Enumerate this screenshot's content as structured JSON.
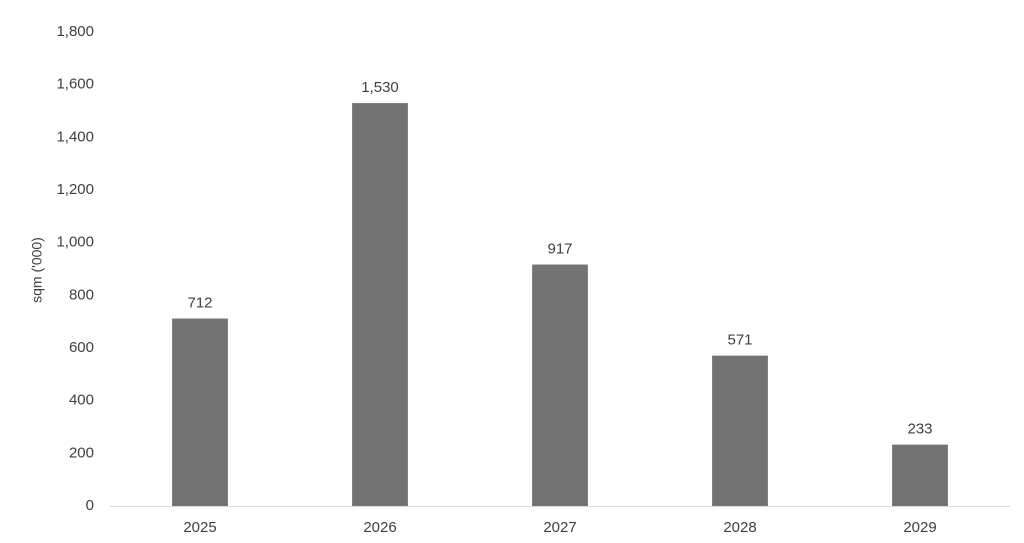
{
  "chart_data": {
    "type": "bar",
    "y_label": "sqm ('000)",
    "categories": [
      "2025",
      "2026",
      "2027",
      "2028",
      "2029"
    ],
    "values": [
      712,
      1530,
      917,
      571,
      233
    ],
    "value_labels": [
      "712",
      "1,530",
      "917",
      "571",
      "233"
    ],
    "color": "#737373",
    "ylim": [
      0,
      1800
    ],
    "yticks": [
      0,
      200,
      400,
      600,
      800,
      {
        "value": 1000,
        "label": "1,000"
      },
      {
        "value": 1200,
        "label": "1,200"
      },
      {
        "value": 1400,
        "label": "1,400"
      },
      {
        "value": 1600,
        "label": "1,600"
      },
      {
        "value": 1800,
        "label": "1,800"
      }
    ],
    "grid": false
  }
}
